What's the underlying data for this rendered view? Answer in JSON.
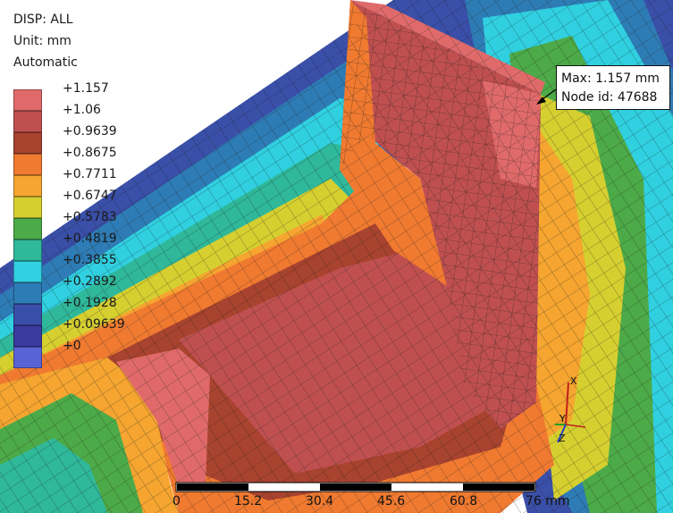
{
  "header": {
    "result": "DISP: ALL",
    "unit": "Unit: mm",
    "range_mode": "Automatic"
  },
  "legend": {
    "labels": [
      "+1.157",
      "+1.06",
      "+0.9639",
      "+0.8675",
      "+0.7711",
      "+0.6747",
      "+0.5783",
      "+0.4819",
      "+0.3855",
      "+0.2892",
      "+0.1928",
      "+0.09639",
      "+0"
    ],
    "colors": [
      "#e06a6a",
      "#c05050",
      "#a8432f",
      "#f07a30",
      "#f5a530",
      "#d6cf30",
      "#4daa48",
      "#2fb89a",
      "#30d0e0",
      "#2e7cb5",
      "#3a4fa8",
      "#3a3aa0",
      "#5a63d4"
    ]
  },
  "tooltip": {
    "max": "Max: 1.157 mm",
    "node": "Node id: 47688"
  },
  "axes": {
    "x": "X",
    "y": "Y",
    "z": "Z"
  },
  "scale": {
    "ticks": [
      "0",
      "15.2",
      "30.4",
      "45.6",
      "60.8",
      "76 mm"
    ]
  }
}
